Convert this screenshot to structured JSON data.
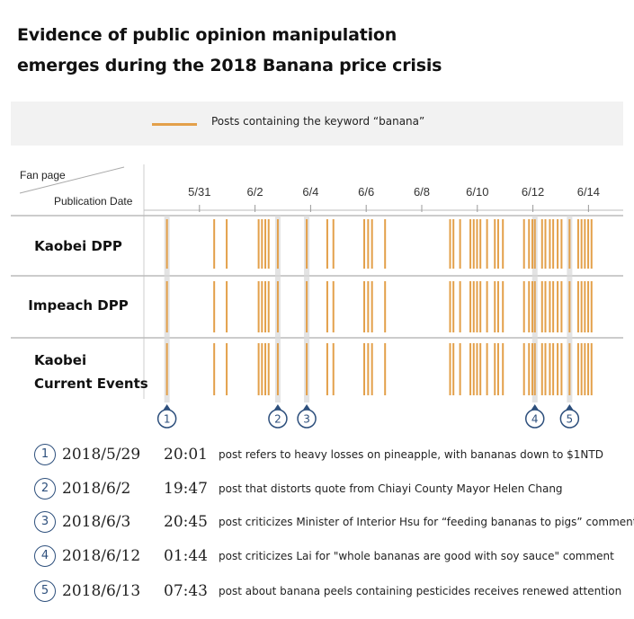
{
  "title": {
    "line1": "Evidence of public opinion manipulation",
    "line2": "emerges during the 2018 Banana price crisis"
  },
  "legend": {
    "label": "Posts containing the keyword “banana”",
    "color": "#e3a04a"
  },
  "header": {
    "fan_page": "Fan page",
    "publication_date": "Publication Date"
  },
  "chart_data": {
    "type": "timeline",
    "title": "Evidence of public opinion manipulation emerges during the 2018 Banana price crisis",
    "x_unit": "days since 2018-05-29 00:00",
    "xlim": [
      0,
      17.25
    ],
    "ticks": [
      {
        "label": "5/31",
        "day": 2.0
      },
      {
        "label": "6/2",
        "day": 4.0
      },
      {
        "label": "6/4",
        "day": 6.0
      },
      {
        "label": "6/6",
        "day": 8.0
      },
      {
        "label": "6/8",
        "day": 10.0
      },
      {
        "label": "6/10",
        "day": 12.0
      },
      {
        "label": "6/12",
        "day": 14.0
      },
      {
        "label": "6/14",
        "day": 16.0
      }
    ],
    "highlight_days": [
      0.83,
      4.82,
      5.86,
      14.07,
      15.32
    ],
    "series": [
      {
        "name": "Kaobei DPP",
        "label_lines": [
          "Kaobei DPP"
        ],
        "posts": [
          0.83,
          2.53,
          2.98,
          4.13,
          4.25,
          4.37,
          4.49,
          4.82,
          5.86,
          6.6,
          6.82,
          7.93,
          8.07,
          8.21,
          8.68,
          11.02,
          11.14,
          11.38,
          11.75,
          11.87,
          11.99,
          12.11,
          12.35,
          12.63,
          12.75,
          12.92,
          13.68,
          13.86,
          13.98,
          14.07,
          14.33,
          14.45,
          14.61,
          14.73,
          14.89,
          15.03,
          15.32,
          15.63,
          15.75,
          15.87,
          15.99,
          16.11
        ]
      },
      {
        "name": "Impeach DPP",
        "label_lines": [
          "Impeach DPP"
        ],
        "posts": [
          0.83,
          2.53,
          2.98,
          4.13,
          4.25,
          4.37,
          4.49,
          4.82,
          5.86,
          6.6,
          6.82,
          7.93,
          8.07,
          8.21,
          8.68,
          11.02,
          11.14,
          11.38,
          11.75,
          11.87,
          11.99,
          12.11,
          12.35,
          12.63,
          12.75,
          12.92,
          13.68,
          13.86,
          13.98,
          14.07,
          14.33,
          14.45,
          14.61,
          14.73,
          14.89,
          15.03,
          15.32,
          15.63,
          15.75,
          15.87,
          15.99,
          16.11
        ]
      },
      {
        "name": "Kaobei Current Events",
        "label_lines": [
          "Kaobei",
          "Current Events"
        ],
        "posts": [
          0.83,
          2.53,
          2.98,
          4.13,
          4.25,
          4.37,
          4.49,
          4.82,
          5.86,
          6.6,
          6.82,
          7.93,
          8.07,
          8.21,
          8.68,
          11.02,
          11.14,
          11.38,
          11.75,
          11.87,
          11.99,
          12.11,
          12.35,
          12.63,
          12.75,
          12.92,
          13.68,
          13.86,
          13.98,
          14.07,
          14.33,
          14.45,
          14.61,
          14.73,
          14.89,
          15.03,
          15.32,
          15.63,
          15.75,
          15.87,
          15.99,
          16.11
        ]
      }
    ]
  },
  "annotations": [
    {
      "num": "1",
      "date": "2018/5/29",
      "time": "20:01",
      "text": "post refers to heavy losses on pineapple, with bananas down to $1NTD"
    },
    {
      "num": "2",
      "date": "2018/6/2",
      "time": "19:47",
      "text": "post that distorts quote from Chiayi County Mayor Helen Chang"
    },
    {
      "num": "3",
      "date": "2018/6/3",
      "time": "20:45",
      "text": "post criticizes Minister of Interior Hsu for “feeding bananas to pigs” comment"
    },
    {
      "num": "4",
      "date": "2018/6/12",
      "time": "01:44",
      "text": "post criticizes Lai for \"whole bananas are good with soy sauce\" comment"
    },
    {
      "num": "5",
      "date": "2018/6/13",
      "time": "07:43",
      "text": "post about banana peels containing pesticides receives renewed attention"
    }
  ]
}
